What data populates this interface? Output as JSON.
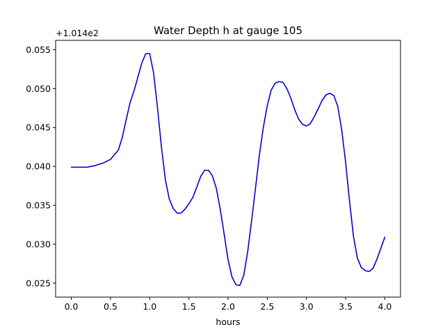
{
  "chart_data": {
    "type": "line",
    "title": "Water Depth h at gauge 105",
    "xlabel": "hours",
    "ylabel": "",
    "y_offset_label": "+1.014e2",
    "xlim": [
      -0.2,
      4.2
    ],
    "ylim": [
      0.0232,
      0.0562
    ],
    "x_ticks": [
      0.0,
      0.5,
      1.0,
      1.5,
      2.0,
      2.5,
      3.0,
      3.5,
      4.0
    ],
    "x_tick_labels": [
      "0.0",
      "0.5",
      "1.0",
      "1.5",
      "2.0",
      "2.5",
      "3.0",
      "3.5",
      "4.0"
    ],
    "y_ticks": [
      0.025,
      0.03,
      0.035,
      0.04,
      0.045,
      0.05,
      0.055
    ],
    "y_tick_labels": [
      "0.025",
      "0.030",
      "0.035",
      "0.040",
      "0.045",
      "0.050",
      "0.055"
    ],
    "grid": false,
    "series": [
      {
        "color": "#0000cc",
        "x": [
          0.0,
          0.1,
          0.2,
          0.3,
          0.4,
          0.5,
          0.6,
          0.65,
          0.7,
          0.75,
          0.8,
          0.85,
          0.9,
          0.95,
          1.0,
          1.05,
          1.1,
          1.15,
          1.2,
          1.25,
          1.3,
          1.35,
          1.4,
          1.45,
          1.5,
          1.55,
          1.6,
          1.65,
          1.7,
          1.75,
          1.8,
          1.85,
          1.9,
          1.95,
          2.0,
          2.05,
          2.1,
          2.15,
          2.2,
          2.25,
          2.3,
          2.35,
          2.4,
          2.45,
          2.5,
          2.55,
          2.6,
          2.65,
          2.7,
          2.75,
          2.8,
          2.85,
          2.9,
          2.95,
          3.0,
          3.05,
          3.1,
          3.15,
          3.2,
          3.25,
          3.3,
          3.35,
          3.4,
          3.45,
          3.5,
          3.55,
          3.6,
          3.65,
          3.7,
          3.75,
          3.8,
          3.85,
          3.9,
          3.95,
          4.0
        ],
        "y": [
          0.0399,
          0.0399,
          0.0399,
          0.0401,
          0.0404,
          0.0409,
          0.0421,
          0.0437,
          0.046,
          0.0482,
          0.0497,
          0.0515,
          0.0533,
          0.0545,
          0.0545,
          0.052,
          0.0475,
          0.0425,
          0.0383,
          0.0358,
          0.0346,
          0.034,
          0.034,
          0.0345,
          0.0352,
          0.036,
          0.0373,
          0.0387,
          0.0395,
          0.0395,
          0.0388,
          0.0372,
          0.0345,
          0.0313,
          0.028,
          0.0258,
          0.0248,
          0.0247,
          0.026,
          0.029,
          0.033,
          0.0372,
          0.0415,
          0.045,
          0.0478,
          0.0498,
          0.0507,
          0.0509,
          0.0508,
          0.05,
          0.0488,
          0.0473,
          0.0461,
          0.0454,
          0.0452,
          0.0455,
          0.0464,
          0.0474,
          0.0485,
          0.0492,
          0.0494,
          0.0491,
          0.0477,
          0.0447,
          0.0405,
          0.0355,
          0.031,
          0.0282,
          0.027,
          0.0266,
          0.0265,
          0.0269,
          0.0281,
          0.0295,
          0.0309
        ]
      }
    ]
  }
}
